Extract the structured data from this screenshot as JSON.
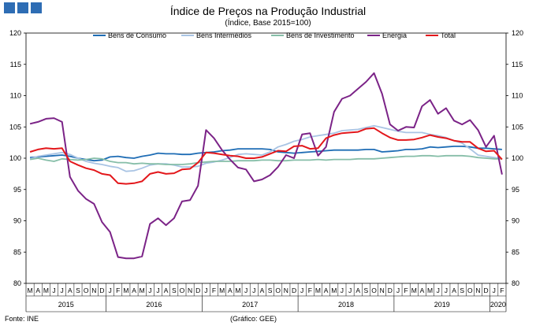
{
  "chart_data": {
    "type": "line",
    "title": "Índice de Preços na Produção Industrial",
    "subtitle": "(Índice, Base 2015=100)",
    "source": "Fonte: INE",
    "credit": "(Gráfico: GEE)",
    "ylim": [
      80,
      120
    ],
    "yticks": [
      80,
      85,
      90,
      95,
      100,
      105,
      110,
      115,
      120
    ],
    "grid": false,
    "legend_position": "top",
    "x": [
      "M",
      "A",
      "M",
      "J",
      "J",
      "A",
      "S",
      "O",
      "N",
      "D",
      "J",
      "F",
      "M",
      "A",
      "M",
      "J",
      "J",
      "A",
      "S",
      "O",
      "N",
      "D",
      "J",
      "F",
      "M",
      "A",
      "M",
      "J",
      "J",
      "A",
      "S",
      "O",
      "N",
      "D",
      "J",
      "F",
      "M",
      "A",
      "M",
      "J",
      "J",
      "A",
      "S",
      "O",
      "N",
      "D",
      "J",
      "F",
      "M",
      "A",
      "M",
      "J",
      "J",
      "A",
      "S",
      "O",
      "N",
      "D",
      "J",
      "F"
    ],
    "year_labels": [
      {
        "label": "2015",
        "start": 0,
        "end": 9
      },
      {
        "label": "2016",
        "start": 10,
        "end": 21
      },
      {
        "label": "2017",
        "start": 22,
        "end": 33
      },
      {
        "label": "2018",
        "start": 34,
        "end": 45
      },
      {
        "label": "2019",
        "start": 46,
        "end": 57
      },
      {
        "label": "2020",
        "start": 58,
        "end": 59
      }
    ],
    "series": [
      {
        "name": "Bens de Consumo",
        "color": "#1f6db5",
        "values": [
          100.1,
          100.2,
          100.3,
          100.4,
          100.5,
          100.3,
          100.0,
          99.8,
          99.6,
          99.7,
          100.2,
          100.3,
          100.1,
          100.0,
          100.3,
          100.5,
          100.8,
          100.7,
          100.7,
          100.6,
          100.6,
          100.8,
          100.9,
          101.0,
          101.2,
          101.3,
          101.5,
          101.5,
          101.5,
          101.5,
          101.4,
          101.0,
          100.9,
          100.8,
          100.9,
          101.0,
          101.1,
          101.2,
          101.3,
          101.3,
          101.3,
          101.3,
          101.4,
          101.4,
          101.0,
          101.1,
          101.2,
          101.4,
          101.4,
          101.5,
          101.8,
          101.7,
          101.8,
          101.9,
          101.9,
          101.8,
          101.6,
          101.6,
          101.5,
          101.4
        ]
      },
      {
        "name": "Bens Intermédios",
        "color": "#a9c4e4",
        "values": [
          99.9,
          100.3,
          100.5,
          100.7,
          100.9,
          100.6,
          100.0,
          99.5,
          99.2,
          99.0,
          98.7,
          98.5,
          97.9,
          98.0,
          98.4,
          98.9,
          99.1,
          99.1,
          98.9,
          98.6,
          98.6,
          98.7,
          99.2,
          99.4,
          99.7,
          100.1,
          100.6,
          100.7,
          100.6,
          100.5,
          101.0,
          101.8,
          102.2,
          102.7,
          103.0,
          103.4,
          103.6,
          103.8,
          104.0,
          104.4,
          104.5,
          104.6,
          104.9,
          105.2,
          104.9,
          104.6,
          104.3,
          104.1,
          104.1,
          104.1,
          103.8,
          103.6,
          103.3,
          102.8,
          102.4,
          101.5,
          100.5,
          100.3,
          100.1,
          99.9
        ]
      },
      {
        "name": "Bens de Investimento",
        "color": "#86bea8",
        "values": [
          99.8,
          100.0,
          99.7,
          99.5,
          99.9,
          99.8,
          99.7,
          99.8,
          100.0,
          99.9,
          99.5,
          99.3,
          99.3,
          99.1,
          99.2,
          99.1,
          99.1,
          99.0,
          99.0,
          99.0,
          99.1,
          99.3,
          99.4,
          99.5,
          99.5,
          99.5,
          99.6,
          99.6,
          99.6,
          99.7,
          99.7,
          99.6,
          99.6,
          99.7,
          99.7,
          99.7,
          99.8,
          99.7,
          99.8,
          99.8,
          99.8,
          99.9,
          99.9,
          99.9,
          100.0,
          100.1,
          100.2,
          100.3,
          100.3,
          100.4,
          100.4,
          100.3,
          100.4,
          100.4,
          100.4,
          100.3,
          100.1,
          100.0,
          99.9,
          99.9
        ]
      },
      {
        "name": "Energia",
        "color": "#7b2387",
        "values": [
          105.5,
          105.8,
          106.3,
          106.4,
          105.8,
          97.0,
          94.8,
          93.5,
          92.7,
          89.8,
          88.2,
          84.2,
          84.0,
          84.0,
          84.3,
          89.5,
          90.4,
          89.3,
          90.4,
          93.1,
          93.3,
          95.6,
          104.5,
          103.2,
          101.3,
          99.8,
          98.5,
          98.2,
          96.3,
          96.6,
          97.3,
          98.6,
          100.5,
          100.0,
          103.8,
          104.0,
          100.4,
          101.8,
          107.4,
          109.5,
          110.0,
          111.1,
          112.2,
          113.6,
          110.3,
          105.4,
          104.4,
          105.0,
          104.9,
          108.3,
          109.3,
          107.1,
          108.0,
          106.0,
          105.4,
          106.1,
          104.5,
          101.8,
          103.6,
          97.4
        ]
      },
      {
        "name": "Total",
        "color": "#e3171b",
        "values": [
          101.0,
          101.4,
          101.6,
          101.5,
          101.6,
          99.5,
          98.9,
          98.4,
          98.1,
          97.5,
          97.3,
          96.0,
          95.9,
          96.0,
          96.3,
          97.5,
          97.8,
          97.5,
          97.6,
          98.2,
          98.3,
          99.3,
          100.9,
          100.8,
          100.6,
          100.4,
          100.3,
          100.0,
          100.0,
          100.2,
          100.7,
          101.2,
          101.1,
          101.9,
          102.0,
          101.5,
          101.6,
          103.2,
          103.7,
          104.0,
          104.1,
          104.2,
          104.7,
          104.8,
          104.0,
          103.3,
          102.9,
          102.9,
          103.0,
          103.3,
          103.7,
          103.4,
          103.2,
          102.8,
          102.6,
          102.6,
          101.6,
          101.1,
          101.2,
          99.8
        ]
      }
    ]
  }
}
